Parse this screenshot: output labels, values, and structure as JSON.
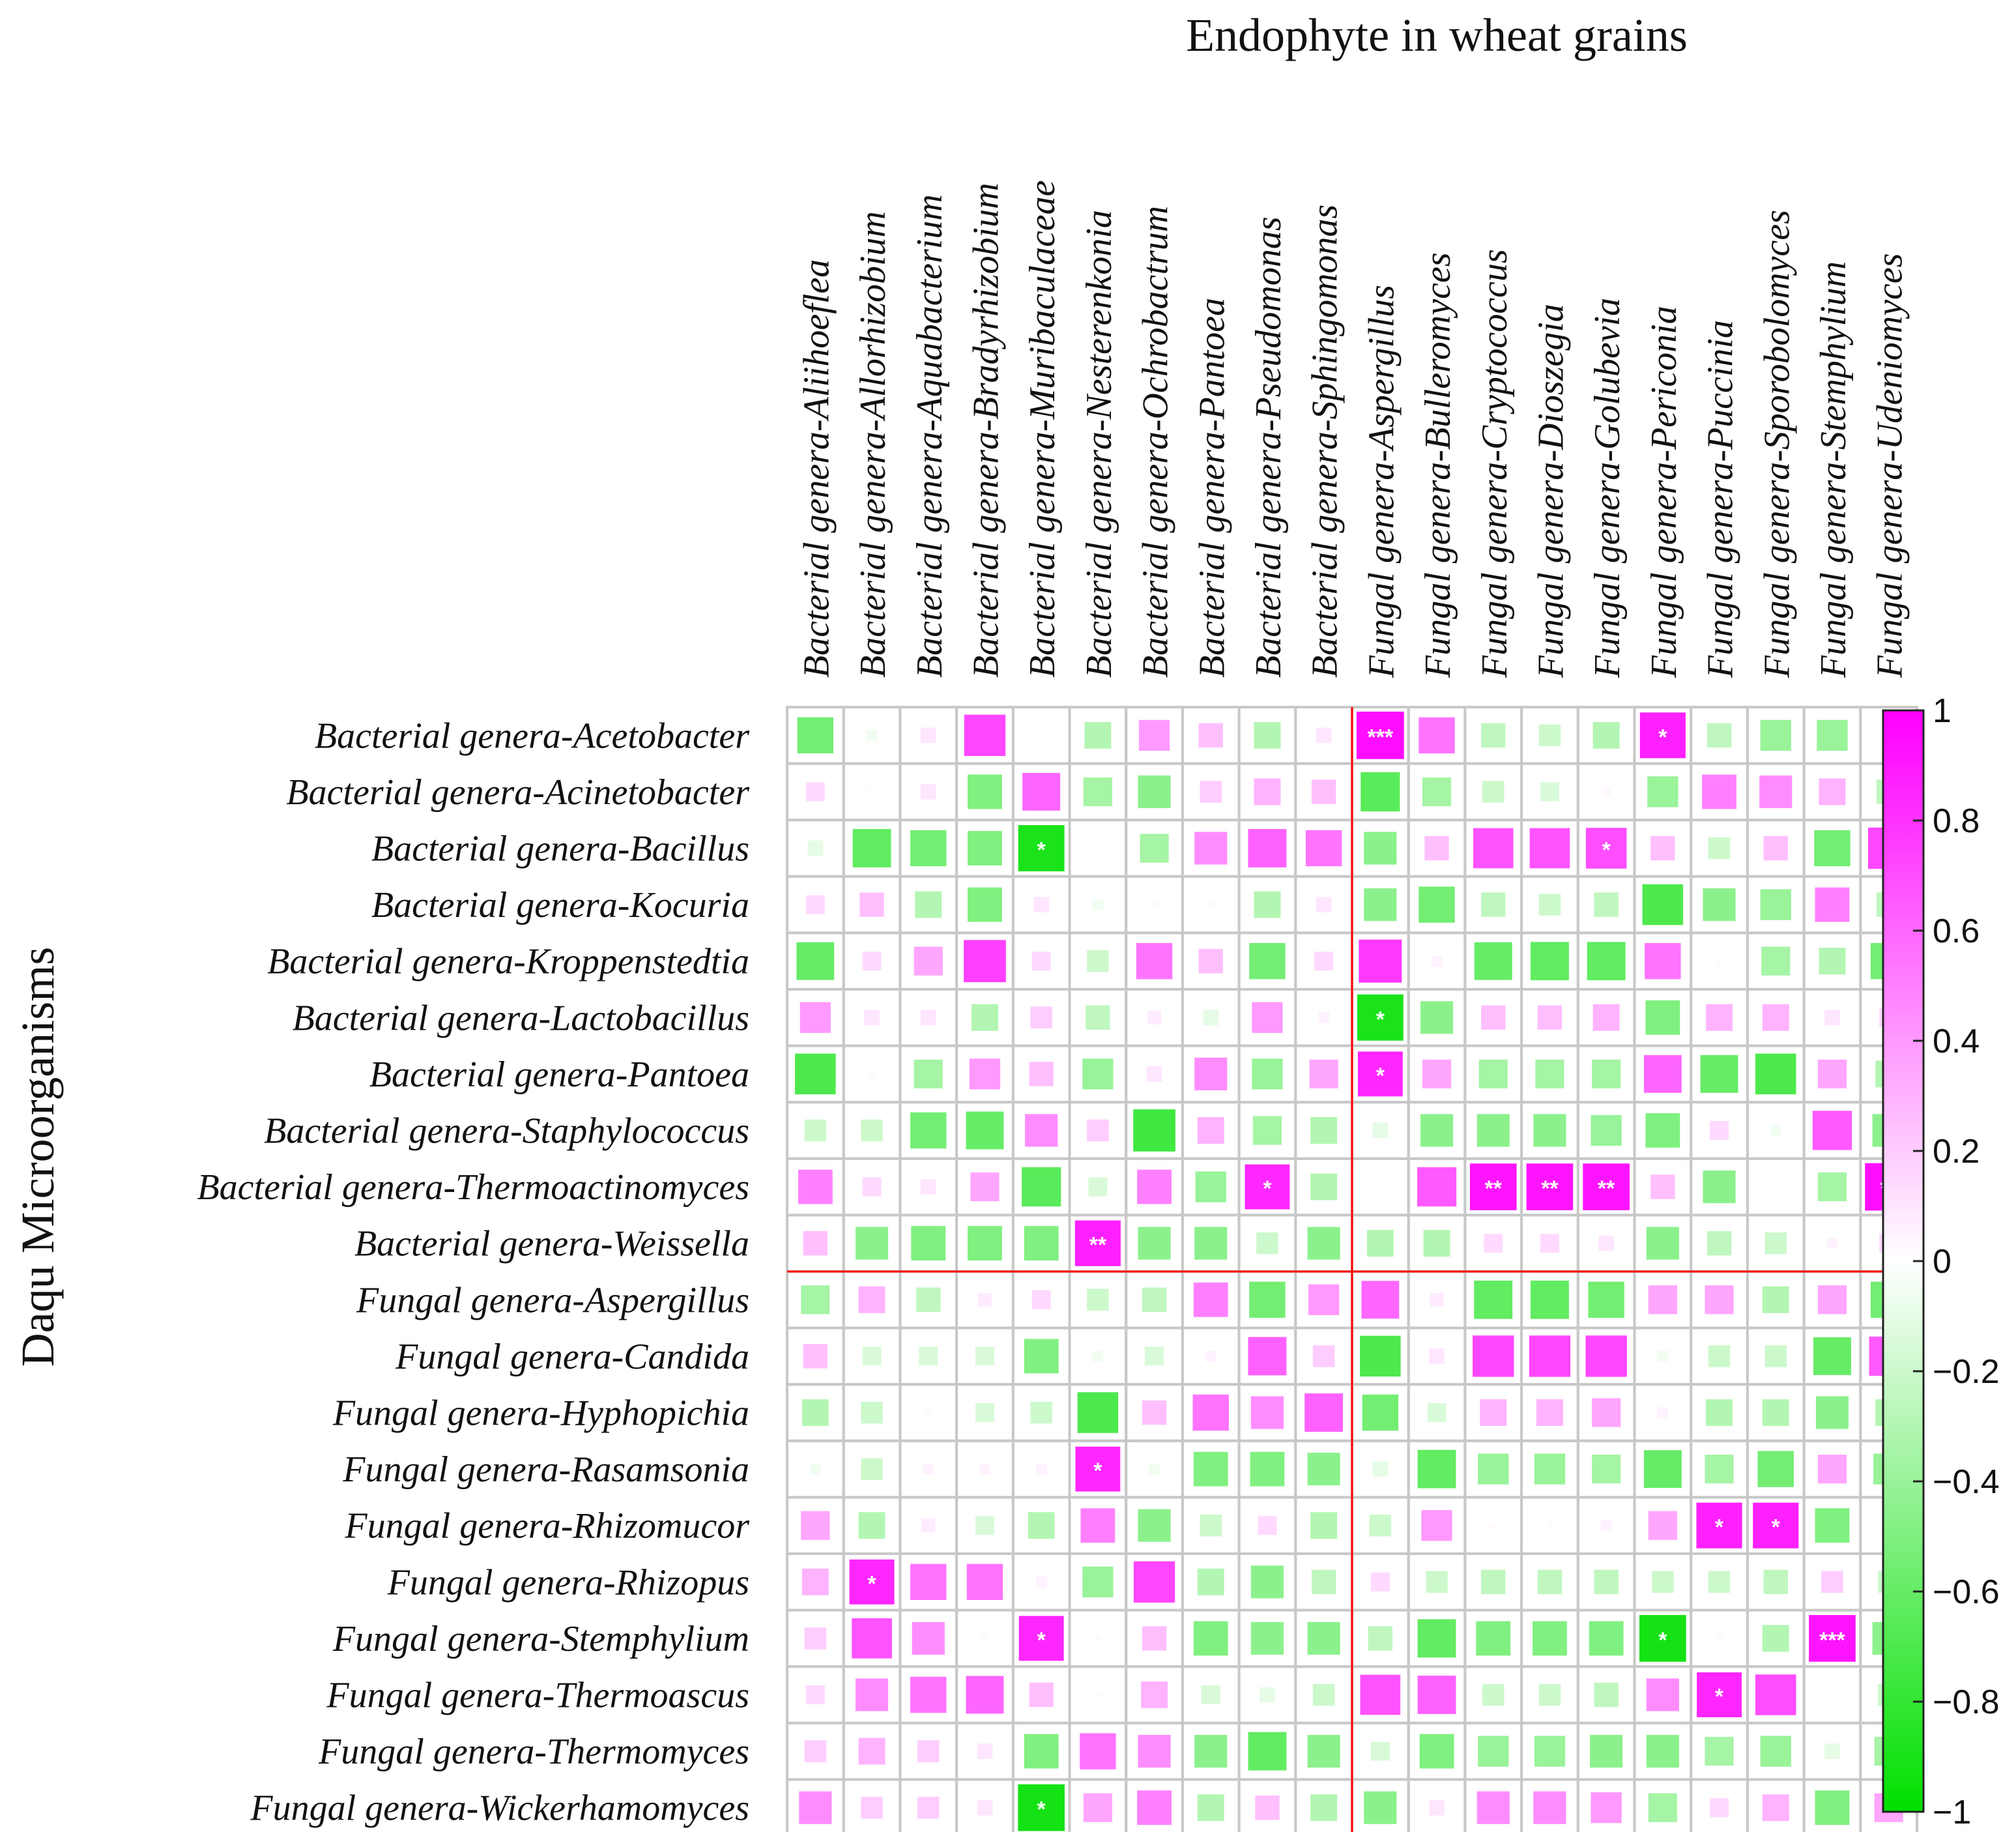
{
  "chart_data": {
    "type": "heatmap",
    "title": "Endophyte in wheat grains",
    "ylabel": "Daqu Microorganisms",
    "columns": [
      "Bacterial genera-Aliihoeflea",
      "Bacterial genera-Allorhizobium",
      "Bacterial genera-Aquabacterium",
      "Bacterial genera-Bradyrhizobium",
      "Bacterial genera-Muribaculaceae",
      "Bacterial genera-Nesterenkonia",
      "Bacterial genera-Ochrobactrum",
      "Bacterial genera-Pantoea",
      "Bacterial genera-Pseudomonas",
      "Bacterial genera-Sphingomonas",
      "Fungal genera-Aspergillus",
      "Fungal genera-Bulleromyces",
      "Fungal genera-Cryptococcus",
      "Fungal genera-Dioszegia",
      "Fungal genera-Golubevia",
      "Fungal genera-Periconia",
      "Fungal genera-Puccinia",
      "Fungal genera-Sporobolomyces",
      "Fungal genera-Stemphylium",
      "Fungal genera-Udeniomyces"
    ],
    "rows": [
      "Bacterial genera-Acetobacter",
      "Bacterial genera-Acinetobacter",
      "Bacterial genera-Bacillus",
      "Bacterial genera-Kocuria",
      "Bacterial genera-Kroppenstedtia",
      "Bacterial genera-Lactobacillus",
      "Bacterial genera-Pantoea",
      "Bacterial genera-Staphylococcus",
      "Bacterial genera-Thermoactinomyces",
      "Bacterial genera-Weissella",
      "Fungal genera-Aspergillus",
      "Fungal genera-Candida",
      "Fungal genera-Hyphopichia",
      "Fungal genera-Rasamsonia",
      "Fungal genera-Rhizomucor",
      "Fungal genera-Rhizopus",
      "Fungal genera-Stemphylium",
      "Fungal genera-Thermoascus",
      "Fungal genera-Thermomyces",
      "Fungal genera-Wickerhamomyces"
    ],
    "values": [
      [
        -0.55,
        -0.05,
        0.1,
        0.72,
        0.0,
        -0.3,
        0.4,
        0.25,
        -0.3,
        0.1,
        0.95,
        0.55,
        -0.25,
        -0.2,
        -0.3,
        0.88,
        -0.25,
        -0.4,
        -0.4,
        0.05
      ],
      [
        0.15,
        0.02,
        0.1,
        -0.5,
        0.6,
        -0.35,
        -0.45,
        0.2,
        0.3,
        0.25,
        -0.65,
        -0.35,
        -0.2,
        -0.15,
        0.03,
        -0.4,
        0.5,
        0.45,
        0.3,
        -0.25
      ],
      [
        -0.1,
        -0.62,
        -0.55,
        -0.5,
        -0.9,
        0.0,
        -0.35,
        0.45,
        0.62,
        0.55,
        -0.45,
        0.25,
        0.68,
        0.68,
        0.7,
        0.25,
        -0.2,
        0.25,
        -0.55,
        0.72
      ],
      [
        0.15,
        0.25,
        -0.3,
        -0.5,
        0.1,
        -0.05,
        0.02,
        0.02,
        -0.3,
        0.1,
        -0.45,
        -0.55,
        -0.25,
        -0.2,
        -0.25,
        -0.7,
        -0.45,
        -0.4,
        0.5,
        -0.25
      ],
      [
        -0.6,
        0.15,
        0.35,
        0.75,
        0.15,
        -0.2,
        0.55,
        0.25,
        -0.55,
        0.15,
        0.78,
        0.05,
        -0.6,
        -0.62,
        -0.62,
        0.55,
        0.02,
        -0.35,
        -0.3,
        -0.55
      ],
      [
        0.4,
        0.1,
        0.1,
        -0.3,
        0.2,
        -0.25,
        0.08,
        -0.1,
        0.4,
        0.05,
        -0.9,
        -0.45,
        0.25,
        0.25,
        0.3,
        -0.5,
        0.3,
        0.3,
        0.1,
        0.15
      ],
      [
        -0.7,
        0.02,
        -0.35,
        0.4,
        0.25,
        -0.4,
        0.1,
        0.45,
        -0.4,
        0.35,
        0.85,
        0.35,
        -0.35,
        -0.35,
        -0.35,
        0.6,
        -0.6,
        -0.7,
        0.35,
        -0.3
      ],
      [
        -0.2,
        -0.2,
        -0.55,
        -0.6,
        0.45,
        0.2,
        -0.75,
        0.3,
        -0.35,
        -0.3,
        -0.1,
        -0.45,
        -0.45,
        -0.45,
        -0.4,
        -0.5,
        0.15,
        -0.05,
        0.65,
        -0.45
      ],
      [
        0.5,
        0.15,
        0.1,
        0.35,
        -0.65,
        -0.15,
        0.5,
        -0.4,
        0.85,
        -0.3,
        0.0,
        0.65,
        0.92,
        0.92,
        0.92,
        0.25,
        -0.45,
        0.0,
        -0.35,
        0.95
      ],
      [
        0.25,
        -0.45,
        -0.5,
        -0.5,
        -0.5,
        0.88,
        -0.45,
        -0.45,
        -0.2,
        -0.45,
        -0.3,
        -0.3,
        0.15,
        0.15,
        0.1,
        -0.45,
        -0.25,
        -0.2,
        0.05,
        0.15
      ],
      [
        -0.35,
        0.3,
        -0.25,
        0.08,
        0.15,
        -0.2,
        -0.25,
        0.5,
        -0.55,
        0.4,
        0.6,
        0.08,
        -0.62,
        -0.62,
        -0.55,
        0.35,
        0.35,
        -0.3,
        0.35,
        -0.55
      ],
      [
        0.25,
        -0.15,
        -0.15,
        -0.15,
        -0.5,
        -0.05,
        -0.15,
        0.05,
        0.62,
        0.2,
        -0.7,
        0.1,
        0.72,
        0.72,
        0.72,
        -0.05,
        -0.2,
        -0.2,
        -0.6,
        0.65
      ],
      [
        -0.3,
        -0.2,
        0.02,
        -0.15,
        -0.2,
        -0.7,
        0.25,
        0.55,
        0.45,
        0.62,
        -0.55,
        -0.15,
        0.3,
        0.3,
        0.35,
        0.05,
        -0.3,
        -0.3,
        -0.45,
        -0.3
      ],
      [
        -0.05,
        -0.2,
        0.05,
        0.05,
        0.05,
        0.85,
        -0.05,
        -0.5,
        -0.5,
        -0.45,
        -0.1,
        -0.62,
        -0.4,
        -0.4,
        -0.35,
        -0.6,
        -0.35,
        -0.55,
        0.35,
        -0.4
      ],
      [
        0.35,
        -0.3,
        0.08,
        -0.15,
        -0.3,
        0.5,
        -0.45,
        -0.2,
        0.15,
        -0.3,
        -0.2,
        0.4,
        0.02,
        0.02,
        0.05,
        0.35,
        0.88,
        0.88,
        -0.5,
        0.02
      ],
      [
        0.3,
        0.85,
        0.55,
        0.55,
        0.05,
        -0.4,
        0.72,
        -0.3,
        -0.45,
        -0.25,
        0.15,
        -0.2,
        -0.25,
        -0.25,
        -0.25,
        -0.2,
        -0.2,
        -0.25,
        0.2,
        -0.2
      ],
      [
        0.2,
        0.68,
        0.45,
        0.02,
        0.85,
        0.02,
        0.25,
        -0.5,
        -0.45,
        -0.45,
        -0.25,
        -0.62,
        -0.5,
        -0.5,
        -0.5,
        -0.92,
        -0.02,
        -0.3,
        0.92,
        -0.45
      ],
      [
        0.15,
        0.45,
        0.55,
        0.6,
        0.25,
        0.02,
        0.3,
        -0.15,
        -0.1,
        -0.2,
        0.68,
        0.62,
        -0.2,
        -0.2,
        -0.25,
        0.45,
        0.85,
        0.7,
        0.0,
        -0.2
      ],
      [
        0.2,
        0.3,
        0.2,
        0.1,
        -0.5,
        0.55,
        0.45,
        -0.45,
        -0.62,
        -0.45,
        -0.15,
        -0.5,
        -0.4,
        -0.4,
        -0.45,
        -0.45,
        -0.35,
        -0.4,
        -0.1,
        -0.35
      ],
      [
        0.45,
        0.2,
        0.2,
        0.1,
        -0.92,
        0.35,
        0.5,
        -0.3,
        0.25,
        -0.3,
        -0.45,
        0.1,
        0.45,
        0.45,
        0.4,
        -0.35,
        0.15,
        0.3,
        -0.5,
        0.35
      ]
    ],
    "significance": [
      [
        "",
        "",
        "",
        "",
        "",
        "",
        "",
        "",
        "",
        "",
        "***",
        "",
        "",
        "",
        "",
        "*",
        "",
        "",
        "",
        ""
      ],
      [
        "",
        "",
        "",
        "",
        "",
        "",
        "",
        "",
        "",
        "",
        "",
        "",
        "",
        "",
        "",
        "",
        "",
        "",
        "",
        ""
      ],
      [
        "",
        "",
        "",
        "",
        "*",
        "",
        "",
        "",
        "",
        "",
        "",
        "",
        "",
        "",
        "*",
        "",
        "",
        "",
        "",
        ""
      ],
      [
        "",
        "",
        "",
        "",
        "",
        "",
        "",
        "",
        "",
        "",
        "",
        "",
        "",
        "",
        "",
        "",
        "",
        "",
        "",
        ""
      ],
      [
        "",
        "",
        "",
        "",
        "",
        "",
        "",
        "",
        "",
        "",
        "",
        "",
        "",
        "",
        "",
        "",
        "",
        "",
        "",
        ""
      ],
      [
        "",
        "",
        "",
        "",
        "",
        "",
        "",
        "",
        "",
        "",
        "*",
        "",
        "",
        "",
        "",
        "",
        "",
        "",
        "",
        ""
      ],
      [
        "",
        "",
        "",
        "",
        "",
        "",
        "",
        "",
        "",
        "",
        "*",
        "",
        "",
        "",
        "",
        "",
        "",
        "",
        "",
        ""
      ],
      [
        "",
        "",
        "",
        "",
        "",
        "",
        "",
        "",
        "",
        "",
        "",
        "",
        "",
        "",
        "",
        "",
        "",
        "",
        "",
        ""
      ],
      [
        "",
        "",
        "",
        "",
        "",
        "",
        "",
        "",
        "*",
        "",
        "",
        "",
        "**",
        "**",
        "**",
        "",
        "",
        "",
        "",
        "**"
      ],
      [
        "",
        "",
        "",
        "",
        "",
        "**",
        "",
        "",
        "",
        "",
        "",
        "",
        "",
        "",
        "",
        "",
        "",
        "",
        "",
        ""
      ],
      [
        "",
        "",
        "",
        "",
        "",
        "",
        "",
        "",
        "",
        "",
        "",
        "",
        "",
        "",
        "",
        "",
        "",
        "",
        "",
        ""
      ],
      [
        "",
        "",
        "",
        "",
        "",
        "",
        "",
        "",
        "",
        "",
        "",
        "",
        "",
        "",
        "",
        "",
        "",
        "",
        "",
        ""
      ],
      [
        "",
        "",
        "",
        "",
        "",
        "",
        "",
        "",
        "",
        "",
        "",
        "",
        "",
        "",
        "",
        "",
        "",
        "",
        "",
        ""
      ],
      [
        "",
        "",
        "",
        "",
        "",
        "*",
        "",
        "",
        "",
        "",
        "",
        "",
        "",
        "",
        "",
        "",
        "",
        "",
        "",
        ""
      ],
      [
        "",
        "",
        "",
        "",
        "",
        "",
        "",
        "",
        "",
        "",
        "",
        "",
        "",
        "",
        "",
        "",
        "*",
        "*",
        "",
        ""
      ],
      [
        "",
        "*",
        "",
        "",
        "",
        "",
        "",
        "",
        "",
        "",
        "",
        "",
        "",
        "",
        "",
        "",
        "",
        "",
        "",
        ""
      ],
      [
        "",
        "",
        "",
        "",
        "*",
        "",
        "",
        "",
        "",
        "",
        "",
        "",
        "",
        "",
        "",
        "*",
        "",
        "",
        "***",
        ""
      ],
      [
        "",
        "",
        "",
        "",
        "",
        "",
        "",
        "",
        "",
        "",
        "",
        "",
        "",
        "",
        "",
        "",
        "*",
        "",
        "",
        ""
      ],
      [
        "",
        "",
        "",
        "",
        "",
        "",
        "",
        "",
        "",
        "",
        "",
        "",
        "",
        "",
        "",
        "",
        "",
        "",
        "",
        ""
      ],
      [
        "",
        "",
        "",
        "",
        "*",
        "",
        "",
        "",
        "",
        "",
        "",
        "",
        "",
        "",
        "",
        "",
        "",
        "",
        "",
        ""
      ]
    ],
    "colorbar": {
      "range": [
        -1,
        1
      ],
      "ticks": [
        1,
        0.8,
        0.6,
        0.4,
        0.2,
        0,
        -0.2,
        -0.4,
        -0.6,
        -0.8,
        -1
      ],
      "tick_labels": [
        "1",
        "0.8",
        "0.6",
        "0.4",
        "0.2",
        "0",
        "−0.2",
        "−0.4",
        "−0.6",
        "−0.8",
        "−1"
      ],
      "positive_color": "#ff00ff",
      "negative_color": "#00e000",
      "zero_color": "#ffffff"
    },
    "grid": true,
    "divider_after_column": 10,
    "divider_after_row": 10,
    "colors": {
      "grid_line": "#c8c8c8",
      "divider_line": "#ff0000",
      "star_text": "#ffffff"
    }
  }
}
